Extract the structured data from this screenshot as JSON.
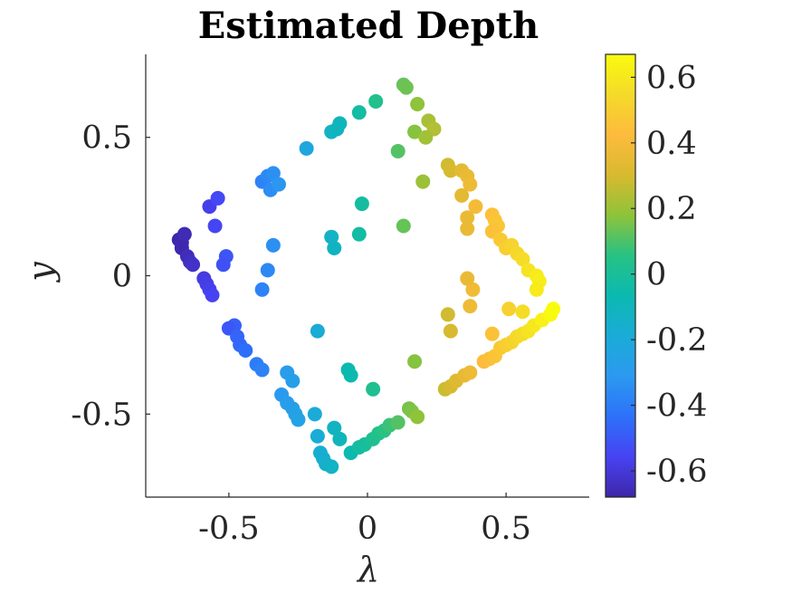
{
  "chart_data": {
    "type": "scatter",
    "title": "Estimated Depth",
    "xlabel": "λ",
    "ylabel": "y",
    "xlim": [
      -0.8,
      0.8
    ],
    "ylim": [
      -0.8,
      0.8
    ],
    "x_ticks": [
      "-0.5",
      "0",
      "0.5"
    ],
    "y_ticks": [
      "0.5",
      "0",
      "-0.5"
    ],
    "x_tick_values": [
      -0.5,
      0,
      0.5
    ],
    "y_tick_values": [
      0.5,
      0,
      -0.5
    ],
    "colorbar": {
      "range": [
        -0.68,
        0.67
      ],
      "ticks": [
        "0.6",
        "0.4",
        "0.2",
        "0",
        "-0.2",
        "-0.4",
        "-0.6"
      ],
      "tick_values": [
        0.6,
        0.4,
        0.2,
        0,
        -0.2,
        -0.4,
        -0.6
      ],
      "colormap": [
        "#3e26a8",
        "#4743f3",
        "#2d71fa",
        "#2c99f0",
        "#1aabd8",
        "#0bb9b0",
        "#27c284",
        "#8ec33a",
        "#d8ba2f",
        "#fdbb3c",
        "#f5da2a",
        "#f9fb0e"
      ]
    },
    "points": [
      [
        -0.68,
        0.13
      ],
      [
        -0.67,
        0.12
      ],
      [
        -0.66,
        0.15
      ],
      [
        -0.67,
        0.1
      ],
      [
        -0.65,
        0.07
      ],
      [
        -0.64,
        0.05
      ],
      [
        -0.63,
        0.04
      ],
      [
        -0.59,
        -0.01
      ],
      [
        -0.58,
        -0.03
      ],
      [
        -0.57,
        -0.05
      ],
      [
        -0.56,
        -0.07
      ],
      [
        -0.57,
        0.25
      ],
      [
        -0.54,
        0.28
      ],
      [
        -0.55,
        0.18
      ],
      [
        -0.51,
        0.07
      ],
      [
        -0.52,
        0.04
      ],
      [
        -0.48,
        -0.18
      ],
      [
        -0.5,
        -0.19
      ],
      [
        -0.47,
        -0.22
      ],
      [
        -0.46,
        -0.25
      ],
      [
        -0.44,
        -0.27
      ],
      [
        -0.4,
        -0.32
      ],
      [
        -0.38,
        -0.05
      ],
      [
        -0.36,
        0.02
      ],
      [
        -0.34,
        0.11
      ],
      [
        -0.38,
        0.34
      ],
      [
        -0.36,
        0.36
      ],
      [
        -0.34,
        0.37
      ],
      [
        -0.35,
        0.31
      ],
      [
        -0.32,
        0.33
      ],
      [
        -0.22,
        0.46
      ],
      [
        -0.13,
        0.52
      ],
      [
        -0.11,
        0.53
      ],
      [
        -0.1,
        0.55
      ],
      [
        -0.03,
        0.59
      ],
      [
        0.03,
        0.63
      ],
      [
        0.13,
        0.69
      ],
      [
        0.14,
        0.68
      ],
      [
        0.18,
        0.62
      ],
      [
        0.22,
        0.56
      ],
      [
        0.24,
        0.53
      ],
      [
        0.17,
        0.52
      ],
      [
        0.21,
        0.5
      ],
      [
        0.11,
        0.45
      ],
      [
        0.2,
        0.34
      ],
      [
        0.13,
        0.18
      ],
      [
        -0.13,
        0.14
      ],
      [
        -0.12,
        0.1
      ],
      [
        -0.02,
        0.26
      ],
      [
        -0.03,
        0.15
      ],
      [
        -0.18,
        -0.2
      ],
      [
        -0.07,
        -0.34
      ],
      [
        -0.06,
        -0.36
      ],
      [
        0.02,
        -0.41
      ],
      [
        0.17,
        -0.31
      ],
      [
        -0.38,
        -0.34
      ],
      [
        -0.29,
        -0.35
      ],
      [
        -0.27,
        -0.38
      ],
      [
        -0.31,
        -0.43
      ],
      [
        -0.29,
        -0.46
      ],
      [
        -0.27,
        -0.48
      ],
      [
        -0.26,
        -0.5
      ],
      [
        -0.25,
        -0.52
      ],
      [
        -0.19,
        -0.5
      ],
      [
        -0.18,
        -0.58
      ],
      [
        -0.12,
        -0.55
      ],
      [
        -0.1,
        -0.59
      ],
      [
        -0.17,
        -0.64
      ],
      [
        -0.16,
        -0.66
      ],
      [
        -0.15,
        -0.68
      ],
      [
        -0.13,
        -0.69
      ],
      [
        -0.06,
        -0.64
      ],
      [
        -0.03,
        -0.62
      ],
      [
        -0.01,
        -0.61
      ],
      [
        0.02,
        -0.59
      ],
      [
        0.04,
        -0.57
      ],
      [
        0.06,
        -0.56
      ],
      [
        0.08,
        -0.54
      ],
      [
        0.11,
        -0.53
      ],
      [
        0.15,
        -0.48
      ],
      [
        0.16,
        -0.49
      ],
      [
        0.18,
        -0.51
      ],
      [
        0.28,
        -0.41
      ],
      [
        0.3,
        -0.4
      ],
      [
        0.32,
        -0.38
      ],
      [
        0.35,
        -0.36
      ],
      [
        0.37,
        -0.35
      ],
      [
        0.42,
        -0.31
      ],
      [
        0.44,
        -0.3
      ],
      [
        0.46,
        -0.29
      ],
      [
        0.48,
        -0.26
      ],
      [
        0.5,
        -0.25
      ],
      [
        0.52,
        -0.24
      ],
      [
        0.54,
        -0.22
      ],
      [
        0.56,
        -0.21
      ],
      [
        0.58,
        -0.2
      ],
      [
        0.6,
        -0.18
      ],
      [
        0.63,
        -0.16
      ],
      [
        0.66,
        -0.14
      ],
      [
        0.67,
        -0.12
      ],
      [
        0.51,
        -0.12
      ],
      [
        0.56,
        -0.13
      ],
      [
        0.45,
        -0.21
      ],
      [
        0.29,
        -0.14
      ],
      [
        0.3,
        -0.2
      ],
      [
        0.37,
        -0.11
      ],
      [
        0.38,
        -0.05
      ],
      [
        0.36,
        -0.01
      ],
      [
        0.29,
        0.4
      ],
      [
        0.3,
        0.38
      ],
      [
        0.34,
        0.38
      ],
      [
        0.36,
        0.36
      ],
      [
        0.37,
        0.33
      ],
      [
        0.34,
        0.29
      ],
      [
        0.36,
        0.21
      ],
      [
        0.36,
        0.17
      ],
      [
        0.39,
        0.25
      ],
      [
        0.45,
        0.22
      ],
      [
        0.46,
        0.2
      ],
      [
        0.47,
        0.18
      ],
      [
        0.45,
        0.16
      ],
      [
        0.48,
        0.13
      ],
      [
        0.5,
        0.1
      ],
      [
        0.52,
        0.11
      ],
      [
        0.54,
        0.08
      ],
      [
        0.56,
        0.06
      ],
      [
        0.58,
        0.02
      ],
      [
        0.61,
        0.0
      ],
      [
        0.62,
        -0.02
      ],
      [
        0.61,
        -0.05
      ]
    ]
  }
}
